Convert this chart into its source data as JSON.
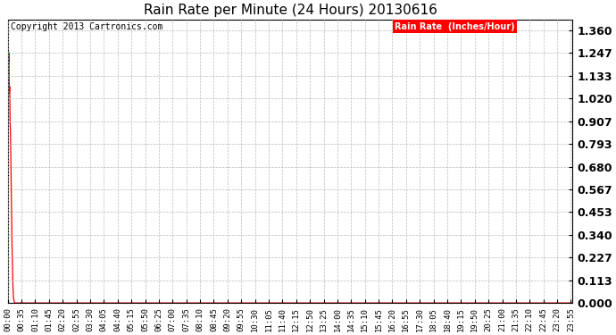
{
  "title": "Rain Rate per Minute (24 Hours) 20130616",
  "copyright_text": "Copyright 2013 Cartronics.com",
  "legend_label": "Rain Rate  (Inches/Hour)",
  "legend_bg": "#ff0000",
  "legend_fg": "#ffffff",
  "line_color": "#ff0000",
  "background_color": "#ffffff",
  "grid_color": "#bbbbbb",
  "yticks": [
    0.0,
    0.113,
    0.227,
    0.34,
    0.453,
    0.567,
    0.68,
    0.793,
    0.907,
    1.02,
    1.133,
    1.247,
    1.36
  ],
  "ylim": [
    0.0,
    1.415
  ],
  "total_minutes": 1440,
  "peak_value": 1.36,
  "xtick_interval": 35,
  "title_fontsize": 11,
  "tick_fontsize": 6.5,
  "ytick_fontsize": 9,
  "copyright_fontsize": 7,
  "legend_fontsize": 7
}
